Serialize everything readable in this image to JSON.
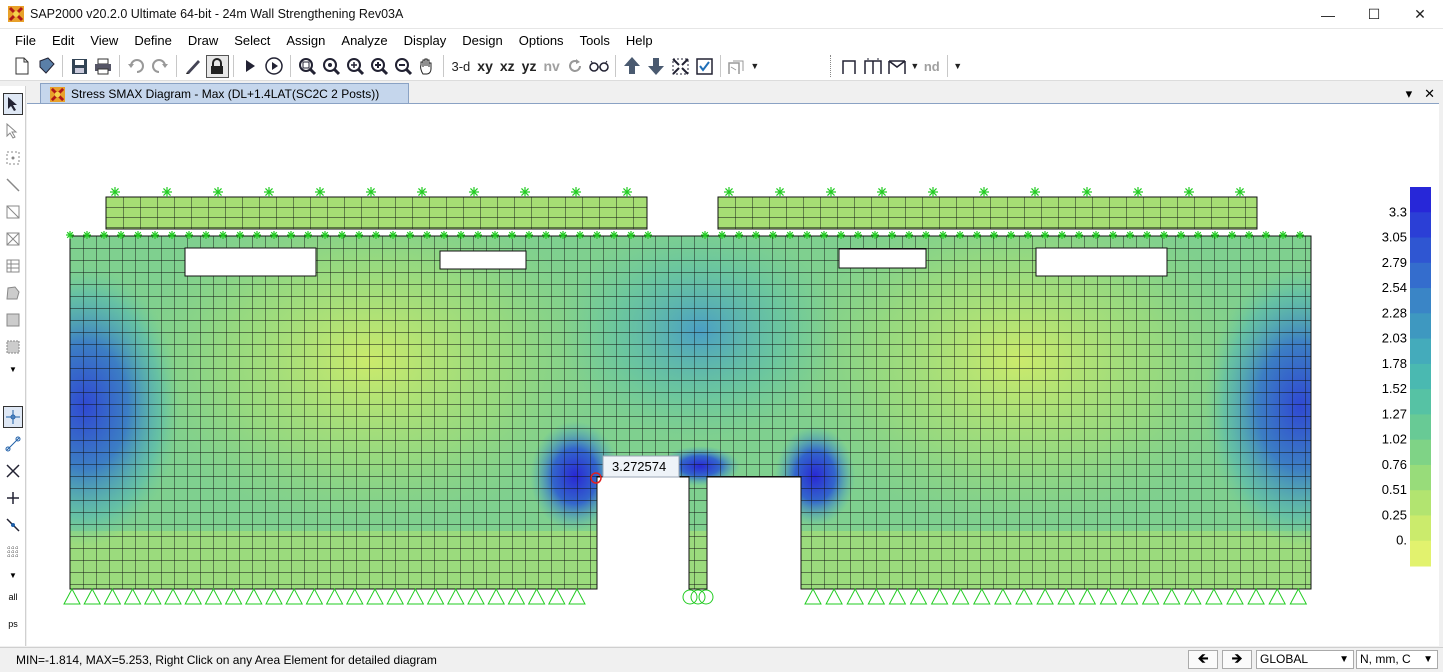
{
  "window": {
    "title": "SAP2000 v20.2.0 Ultimate 64-bit - 24m Wall Strengthening Rev03A",
    "minimize": "—",
    "maximize": "☐",
    "close": "✕"
  },
  "menu": [
    "File",
    "Edit",
    "View",
    "Define",
    "Draw",
    "Select",
    "Assign",
    "Analyze",
    "Display",
    "Design",
    "Options",
    "Tools",
    "Help"
  ],
  "toolbar": {
    "view_3d": "3-d",
    "view_xy": "xy",
    "view_xz": "xz",
    "view_yz": "yz",
    "view_nv": "nv",
    "nd_label": "nd"
  },
  "document": {
    "tab_title": "Stress SMAX Diagram - Max   (DL+1.4LAT(SC2C 2 Posts))",
    "dropdown": "▾",
    "close": "✕"
  },
  "diagram": {
    "tooltip_value": "3.272574"
  },
  "legend": {
    "labels": [
      "3.3",
      "3.05",
      "2.79",
      "2.54",
      "2.28",
      "2.03",
      "1.78",
      "1.52",
      "1.27",
      "1.02",
      "0.76",
      "0.51",
      "0.25",
      "0."
    ],
    "colors": [
      "#2727d8",
      "#2b3fd6",
      "#2f56d2",
      "#346dcd",
      "#3a85c6",
      "#3e98c0",
      "#44abbb",
      "#4ab9b1",
      "#56c2a4",
      "#68ca95",
      "#7fd386",
      "#98dc7a",
      "#b2e470",
      "#cbeb6c",
      "#e2f26e"
    ]
  },
  "status": {
    "text": "MIN=-1.814, MAX=5.253, Right Click on any Area Element for detailed diagram",
    "coord_system": "GLOBAL",
    "units": "N, mm, C"
  }
}
